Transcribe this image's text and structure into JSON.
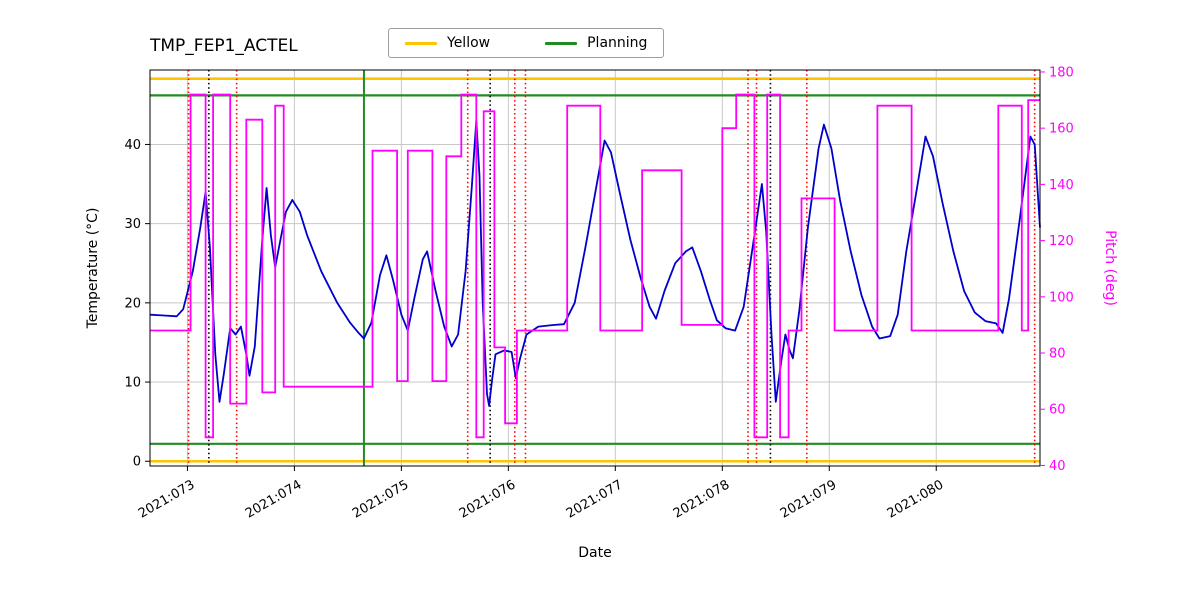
{
  "chart_data": {
    "type": "line",
    "title": "TMP_FEP1_ACTEL",
    "xlabel": "Date",
    "ylabel_left": "Temperature (°C)",
    "ylabel_right": "Pitch (deg)",
    "grid": true,
    "xlim": [
      72.65,
      80.97
    ],
    "ylim_left": [
      -0.6,
      49.4
    ],
    "ylim_right": [
      39.8,
      180.7
    ],
    "x_ticks": [
      {
        "value": 73,
        "label": "2021:073"
      },
      {
        "value": 74,
        "label": "2021:074"
      },
      {
        "value": 75,
        "label": "2021:075"
      },
      {
        "value": 76,
        "label": "2021:076"
      },
      {
        "value": 77,
        "label": "2021:077"
      },
      {
        "value": 78,
        "label": "2021:078"
      },
      {
        "value": 79,
        "label": "2021:079"
      },
      {
        "value": 80,
        "label": "2021:080"
      }
    ],
    "y_ticks_left": [
      0,
      10,
      20,
      30,
      40
    ],
    "y_ticks_right": [
      40,
      60,
      80,
      100,
      120,
      140,
      160,
      180
    ],
    "colors": {
      "temperature": "#0000cd",
      "pitch": "#ff00ff",
      "yellow_limit": "#ffc400",
      "planning_limit": "#228b22",
      "red_event": "#ff0000",
      "black_event": "#000000",
      "grid": "#c8c8c8",
      "spine": "#000000"
    },
    "legend": {
      "position": "upper-center",
      "entries": [
        {
          "label": "Yellow",
          "color": "#ffc400"
        },
        {
          "label": "Planning",
          "color": "#228b22"
        }
      ]
    },
    "hlines": [
      {
        "name": "yellow-upper-limit-line",
        "y": 48.3,
        "color": "#ffc400",
        "width": 2.6
      },
      {
        "name": "yellow-lower-limit-line",
        "y": 0.0,
        "color": "#ffc400",
        "width": 2.6
      },
      {
        "name": "planning-upper-limit-line",
        "y": 46.2,
        "color": "#228b22",
        "width": 2.2
      },
      {
        "name": "planning-lower-limit-line",
        "y": 2.2,
        "color": "#228b22",
        "width": 2.2
      }
    ],
    "vlines": [
      {
        "name": "green-solid-boundary-line",
        "x": 74.65,
        "color": "#228b22",
        "style": "solid"
      },
      {
        "name": "red-event-line-1",
        "x": 73.01,
        "color": "#ff0000",
        "style": "dotted"
      },
      {
        "name": "red-event-line-2",
        "x": 73.46,
        "color": "#ff0000",
        "style": "dotted"
      },
      {
        "name": "red-event-line-3",
        "x": 75.62,
        "color": "#ff0000",
        "style": "dotted"
      },
      {
        "name": "red-event-line-4",
        "x": 76.06,
        "color": "#ff0000",
        "style": "dotted"
      },
      {
        "name": "red-event-line-5",
        "x": 76.16,
        "color": "#ff0000",
        "style": "dotted"
      },
      {
        "name": "red-event-line-6",
        "x": 78.24,
        "color": "#ff0000",
        "style": "dotted"
      },
      {
        "name": "red-event-line-7",
        "x": 78.32,
        "color": "#ff0000",
        "style": "dotted"
      },
      {
        "name": "red-event-line-8",
        "x": 78.79,
        "color": "#ff0000",
        "style": "dotted"
      },
      {
        "name": "red-event-line-9",
        "x": 80.92,
        "color": "#ff0000",
        "style": "dotted"
      },
      {
        "name": "black-event-line-1",
        "x": 73.2,
        "color": "#000000",
        "style": "dotted"
      },
      {
        "name": "black-event-line-2",
        "x": 75.83,
        "color": "#000000",
        "style": "dotted"
      },
      {
        "name": "black-event-line-3",
        "x": 78.45,
        "color": "#000000",
        "style": "dotted"
      }
    ],
    "series": [
      {
        "name": "temperature",
        "axis": "left",
        "draw": "line",
        "color": "#0000cd",
        "points": [
          [
            72.65,
            18.5
          ],
          [
            72.78,
            18.4
          ],
          [
            72.9,
            18.3
          ],
          [
            72.96,
            19.2
          ],
          [
            73.05,
            24.0
          ],
          [
            73.12,
            29.5
          ],
          [
            73.17,
            34.0
          ],
          [
            73.21,
            27.0
          ],
          [
            73.26,
            13.5
          ],
          [
            73.3,
            7.5
          ],
          [
            73.34,
            11.0
          ],
          [
            73.4,
            16.8
          ],
          [
            73.45,
            16.0
          ],
          [
            73.5,
            17.0
          ],
          [
            73.55,
            13.5
          ],
          [
            73.58,
            10.8
          ],
          [
            73.63,
            14.5
          ],
          [
            73.7,
            28.0
          ],
          [
            73.74,
            34.5
          ],
          [
            73.78,
            28.5
          ],
          [
            73.82,
            24.5
          ],
          [
            73.87,
            28.0
          ],
          [
            73.92,
            31.5
          ],
          [
            73.98,
            33.0
          ],
          [
            74.05,
            31.5
          ],
          [
            74.12,
            28.5
          ],
          [
            74.25,
            24.0
          ],
          [
            74.4,
            20.0
          ],
          [
            74.52,
            17.5
          ],
          [
            74.6,
            16.2
          ],
          [
            74.65,
            15.5
          ],
          [
            74.72,
            17.5
          ],
          [
            74.8,
            23.5
          ],
          [
            74.86,
            26.0
          ],
          [
            74.92,
            23.0
          ],
          [
            75.0,
            18.5
          ],
          [
            75.06,
            16.5
          ],
          [
            75.12,
            20.5
          ],
          [
            75.2,
            25.5
          ],
          [
            75.24,
            26.5
          ],
          [
            75.32,
            21.5
          ],
          [
            75.4,
            17.0
          ],
          [
            75.47,
            14.5
          ],
          [
            75.53,
            16.0
          ],
          [
            75.6,
            24.0
          ],
          [
            75.66,
            35.0
          ],
          [
            75.7,
            43.0
          ],
          [
            75.73,
            36.0
          ],
          [
            75.76,
            20.0
          ],
          [
            75.8,
            8.5
          ],
          [
            75.82,
            7.0
          ],
          [
            75.85,
            10.5
          ],
          [
            75.88,
            13.5
          ],
          [
            75.96,
            14.0
          ],
          [
            76.03,
            13.8
          ],
          [
            76.07,
            10.5
          ],
          [
            76.11,
            13.0
          ],
          [
            76.17,
            16.0
          ],
          [
            76.28,
            17.0
          ],
          [
            76.42,
            17.2
          ],
          [
            76.52,
            17.3
          ],
          [
            76.62,
            20.0
          ],
          [
            76.72,
            27.0
          ],
          [
            76.82,
            34.5
          ],
          [
            76.9,
            40.5
          ],
          [
            76.96,
            39.0
          ],
          [
            77.04,
            34.0
          ],
          [
            77.14,
            28.0
          ],
          [
            77.24,
            23.0
          ],
          [
            77.32,
            19.5
          ],
          [
            77.38,
            18.0
          ],
          [
            77.46,
            21.5
          ],
          [
            77.56,
            25.0
          ],
          [
            77.66,
            26.5
          ],
          [
            77.72,
            27.0
          ],
          [
            77.8,
            24.0
          ],
          [
            77.88,
            20.5
          ],
          [
            77.95,
            17.8
          ],
          [
            78.03,
            16.8
          ],
          [
            78.12,
            16.5
          ],
          [
            78.2,
            19.5
          ],
          [
            78.3,
            28.5
          ],
          [
            78.37,
            35.0
          ],
          [
            78.41,
            29.0
          ],
          [
            78.46,
            16.0
          ],
          [
            78.5,
            7.5
          ],
          [
            78.55,
            12.5
          ],
          [
            78.59,
            16.0
          ],
          [
            78.63,
            14.0
          ],
          [
            78.66,
            13.0
          ],
          [
            78.72,
            19.0
          ],
          [
            78.8,
            29.5
          ],
          [
            78.9,
            39.5
          ],
          [
            78.95,
            42.5
          ],
          [
            79.02,
            39.5
          ],
          [
            79.1,
            33.0
          ],
          [
            79.2,
            26.5
          ],
          [
            79.3,
            21.0
          ],
          [
            79.4,
            17.0
          ],
          [
            79.47,
            15.5
          ],
          [
            79.57,
            15.8
          ],
          [
            79.64,
            18.5
          ],
          [
            79.72,
            26.5
          ],
          [
            79.82,
            34.5
          ],
          [
            79.9,
            41.0
          ],
          [
            79.97,
            38.5
          ],
          [
            80.06,
            32.5
          ],
          [
            80.16,
            26.5
          ],
          [
            80.26,
            21.5
          ],
          [
            80.36,
            18.8
          ],
          [
            80.46,
            17.7
          ],
          [
            80.56,
            17.4
          ],
          [
            80.62,
            16.2
          ],
          [
            80.68,
            20.5
          ],
          [
            80.78,
            30.5
          ],
          [
            80.88,
            41.0
          ],
          [
            80.92,
            40.0
          ],
          [
            80.97,
            29.5
          ]
        ]
      },
      {
        "name": "pitch",
        "axis": "right",
        "draw": "step",
        "color": "#ff00ff",
        "points": [
          [
            72.65,
            88
          ],
          [
            73.03,
            172
          ],
          [
            73.17,
            50
          ],
          [
            73.24,
            172
          ],
          [
            73.4,
            62
          ],
          [
            73.55,
            163
          ],
          [
            73.7,
            66
          ],
          [
            73.82,
            168
          ],
          [
            73.9,
            68
          ],
          [
            74.73,
            152
          ],
          [
            74.96,
            70
          ],
          [
            75.06,
            152
          ],
          [
            75.29,
            70
          ],
          [
            75.42,
            150
          ],
          [
            75.56,
            172
          ],
          [
            75.7,
            50
          ],
          [
            75.77,
            166
          ],
          [
            75.87,
            82
          ],
          [
            75.97,
            55
          ],
          [
            76.08,
            88
          ],
          [
            76.55,
            168
          ],
          [
            76.86,
            88
          ],
          [
            77.25,
            145
          ],
          [
            77.62,
            90
          ],
          [
            78.0,
            160
          ],
          [
            78.13,
            172
          ],
          [
            78.3,
            50
          ],
          [
            78.42,
            172
          ],
          [
            78.54,
            50
          ],
          [
            78.62,
            88
          ],
          [
            78.74,
            135
          ],
          [
            79.05,
            88
          ],
          [
            79.45,
            168
          ],
          [
            79.77,
            88
          ],
          [
            80.58,
            168
          ],
          [
            80.8,
            88
          ],
          [
            80.86,
            170
          ],
          [
            80.97,
            170
          ]
        ]
      }
    ]
  }
}
